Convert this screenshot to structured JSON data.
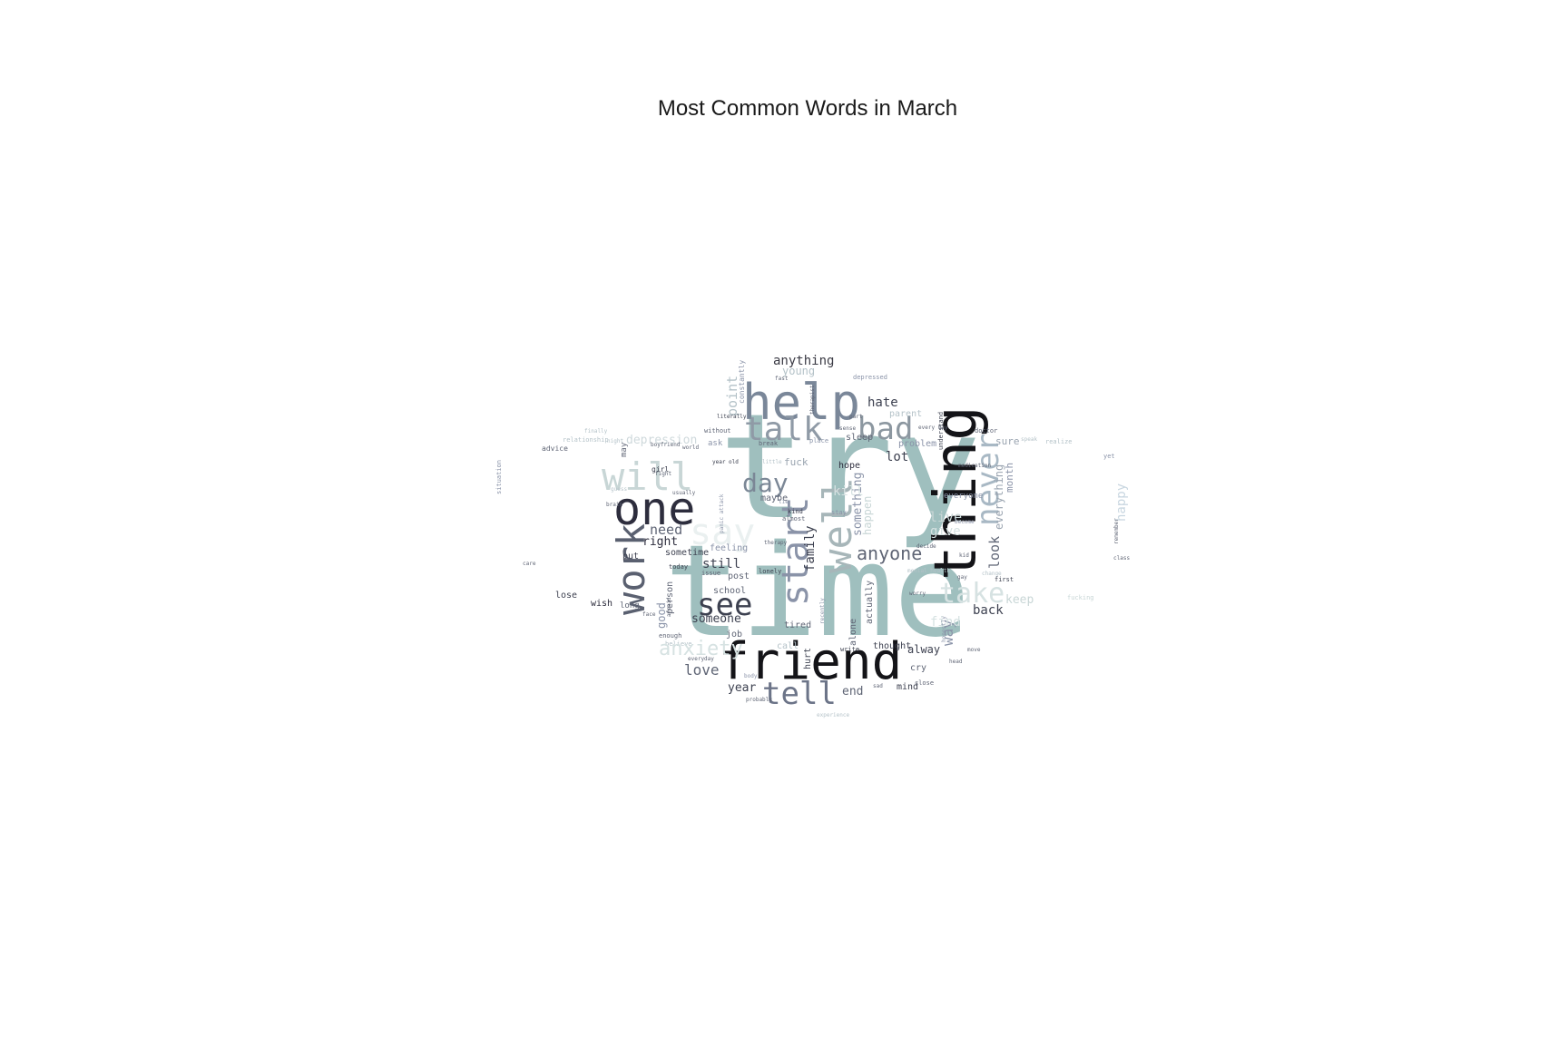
{
  "title": "Most Common Words in March",
  "words": [
    {
      "text": "try",
      "color": "#9fbfbe"
    },
    {
      "text": "time",
      "color": "#9fbfbe"
    },
    {
      "text": "friend",
      "color": "#141418"
    },
    {
      "text": "thing",
      "color": "#141418"
    },
    {
      "text": "help",
      "color": "#7a8799"
    },
    {
      "text": "one",
      "color": "#2d2d3d"
    },
    {
      "text": "talk",
      "color": "#8f9aa6"
    },
    {
      "text": "work",
      "color": "#5a6070"
    },
    {
      "text": "well",
      "color": "#a7b6b9"
    },
    {
      "text": "will",
      "color": "#c8d6d6"
    },
    {
      "text": "see",
      "color": "#3d4150"
    },
    {
      "text": "tell",
      "color": "#6c7488"
    },
    {
      "text": "start",
      "color": "#8a93a8"
    },
    {
      "text": "bad",
      "color": "#8c97a0"
    },
    {
      "text": "never",
      "color": "#a8b8c4"
    },
    {
      "text": "day",
      "color": "#7b8796"
    },
    {
      "text": "say",
      "color": "#eaf0f0"
    },
    {
      "text": "take",
      "color": "#d6e2e2"
    },
    {
      "text": "anyone",
      "color": "#5f6575"
    },
    {
      "text": "anything",
      "color": "#3a3a44"
    },
    {
      "text": "someone",
      "color": "#3d4150"
    },
    {
      "text": "still",
      "color": "#3d4150"
    },
    {
      "text": "love",
      "color": "#5f6575"
    },
    {
      "text": "year",
      "color": "#3d4150"
    },
    {
      "text": "back",
      "color": "#3d4150"
    },
    {
      "text": "need",
      "color": "#5f6575"
    },
    {
      "text": "right",
      "color": "#2d2d3d"
    },
    {
      "text": "hate",
      "color": "#3d4150"
    },
    {
      "text": "lot",
      "color": "#3d4150"
    },
    {
      "text": "end",
      "color": "#5f6575"
    },
    {
      "text": "family",
      "color": "#3d4150"
    },
    {
      "text": "something",
      "color": "#8a93a8"
    },
    {
      "text": "depression",
      "color": "#cfd9dc"
    },
    {
      "text": "keep",
      "color": "#c8d6d6"
    },
    {
      "text": "happy",
      "color": "#c8d6e0"
    },
    {
      "text": "way",
      "color": "#8a93a8"
    },
    {
      "text": "look",
      "color": "#5f6575"
    },
    {
      "text": "everything",
      "color": "#9aa4b0"
    },
    {
      "text": "month",
      "color": "#8a93a8"
    },
    {
      "text": "live",
      "color": "#c8d6d6"
    },
    {
      "text": "give",
      "color": "#d6e2e2"
    },
    {
      "text": "point",
      "color": "#b4c2c8"
    },
    {
      "text": "hope",
      "color": "#2d2d3d"
    },
    {
      "text": "fuck",
      "color": "#9aa4b0"
    },
    {
      "text": "maybe",
      "color": "#5f6575"
    },
    {
      "text": "kill",
      "color": "#d6e2e2"
    },
    {
      "text": "sleep",
      "color": "#5f6575"
    },
    {
      "text": "problem",
      "color": "#8a93a8"
    },
    {
      "text": "parent",
      "color": "#b4c2c8"
    },
    {
      "text": "feeling",
      "color": "#8a93a8"
    },
    {
      "text": "sometime",
      "color": "#3d4150"
    },
    {
      "text": "put",
      "color": "#3d4150"
    },
    {
      "text": "post",
      "color": "#5f6575"
    },
    {
      "text": "school",
      "color": "#5f6575"
    },
    {
      "text": "good",
      "color": "#8a93a8"
    },
    {
      "text": "person",
      "color": "#5f6575"
    },
    {
      "text": "job",
      "color": "#5f6575"
    },
    {
      "text": "tired",
      "color": "#5f6575"
    },
    {
      "text": "alway",
      "color": "#3d4150"
    },
    {
      "text": "thought",
      "color": "#3d4150"
    },
    {
      "text": "cry",
      "color": "#5f6575"
    },
    {
      "text": "mind",
      "color": "#3d4150"
    },
    {
      "text": "hurt",
      "color": "#3d4150"
    },
    {
      "text": "alone",
      "color": "#5f6575"
    },
    {
      "text": "actually",
      "color": "#5f6575"
    },
    {
      "text": "lose",
      "color": "#3d4150"
    },
    {
      "text": "wish",
      "color": "#2d2d3d"
    },
    {
      "text": "long",
      "color": "#5f6575"
    },
    {
      "text": "everyone",
      "color": "#8a93a8"
    },
    {
      "text": "sure",
      "color": "#9aa4b0"
    },
    {
      "text": "find",
      "color": "#d6e2e2"
    },
    {
      "text": "advice",
      "color": "#5f6575"
    },
    {
      "text": "relationship",
      "color": "#b4c2c8"
    },
    {
      "text": "without",
      "color": "#5f6575"
    },
    {
      "text": "depressed",
      "color": "#8a93a8"
    },
    {
      "text": "doctor",
      "color": "#5f6575"
    },
    {
      "text": "ask",
      "color": "#8a93a8"
    },
    {
      "text": "today",
      "color": "#3d4150"
    },
    {
      "text": "enough",
      "color": "#5f6575"
    },
    {
      "text": "first",
      "color": "#3d4150"
    },
    {
      "text": "understand",
      "color": "#3d4150"
    },
    {
      "text": "girl",
      "color": "#3d4150"
    },
    {
      "text": "constantly",
      "color": "#8a93a8"
    },
    {
      "text": "lonely",
      "color": "#3d4150"
    },
    {
      "text": "situation",
      "color": "#8a93a8"
    },
    {
      "text": "break",
      "color": "#5f6575"
    },
    {
      "text": "place",
      "color": "#8a93a8"
    },
    {
      "text": "stay",
      "color": "#8a93a8"
    },
    {
      "text": "kind",
      "color": "#3d4150"
    },
    {
      "text": "almost",
      "color": "#5f6575"
    },
    {
      "text": "issue",
      "color": "#5f6575"
    },
    {
      "text": "close",
      "color": "#5f6575"
    },
    {
      "text": "yet",
      "color": "#8a93a8"
    },
    {
      "text": "head",
      "color": "#5f6575"
    },
    {
      "text": "body",
      "color": "#8a93a8"
    },
    {
      "text": "probably",
      "color": "#5f6575"
    },
    {
      "text": "world",
      "color": "#5f6575"
    },
    {
      "text": "may",
      "color": "#5f6575"
    },
    {
      "text": "literally",
      "color": "#3d4150"
    },
    {
      "text": "happen",
      "color": "#c8d6d6"
    },
    {
      "text": "mental health",
      "color": "#b4c2c8"
    },
    {
      "text": "panic attack",
      "color": "#8a93a8"
    },
    {
      "text": "believe",
      "color": "#b4c2c8"
    },
    {
      "text": "experience",
      "color": "#b4c2c8"
    },
    {
      "text": "write",
      "color": "#3d4150"
    },
    {
      "text": "call",
      "color": "#b4c2c8"
    },
    {
      "text": "recently",
      "color": "#8a93a8"
    },
    {
      "text": "honestly",
      "color": "#8a93a8"
    },
    {
      "text": "realize",
      "color": "#b4c2c8"
    },
    {
      "text": "night",
      "color": "#b4c2c8"
    },
    {
      "text": "medication",
      "color": "#5f6575"
    },
    {
      "text": "decide",
      "color": "#5f6575"
    },
    {
      "text": "kid",
      "color": "#5f6575"
    },
    {
      "text": "move",
      "color": "#5f6575"
    },
    {
      "text": "little",
      "color": "#b4c2c8"
    },
    {
      "text": "therapy",
      "color": "#5f6575"
    },
    {
      "text": "fucking",
      "color": "#c8d6d6"
    },
    {
      "text": "change",
      "color": "#b4c2c8"
    },
    {
      "text": "everyday",
      "color": "#5f6575"
    },
    {
      "text": "afraid",
      "color": "#5f6575"
    },
    {
      "text": "sad",
      "color": "#5f6575"
    },
    {
      "text": "brain",
      "color": "#5f6575"
    },
    {
      "text": "year old",
      "color": "#3d4150"
    },
    {
      "text": "remember",
      "color": "#5f6575"
    },
    {
      "text": "class",
      "color": "#5f6575"
    },
    {
      "text": "care",
      "color": "#5f6575"
    },
    {
      "text": "guess",
      "color": "#b4c2c8"
    },
    {
      "text": "usually",
      "color": "#5f6575"
    },
    {
      "text": "boyfriend",
      "color": "#5f6575"
    },
    {
      "text": "worry",
      "color": "#5f6575"
    },
    {
      "text": "fight",
      "color": "#5f6575"
    },
    {
      "text": "become",
      "color": "#8a93a8"
    },
    {
      "text": "sense",
      "color": "#5f6575"
    },
    {
      "text": "part",
      "color": "#5f6575"
    },
    {
      "text": "every day",
      "color": "#5f6575"
    },
    {
      "text": "therapist",
      "color": "#5f6575"
    },
    {
      "text": "finally",
      "color": "#b4c2c8"
    },
    {
      "text": "lie",
      "color": "#8a93a8"
    },
    {
      "text": "speak",
      "color": "#b4c2c8"
    },
    {
      "text": "face",
      "color": "#5f6575"
    },
    {
      "text": "fast",
      "color": "#5f6575"
    },
    {
      "text": "gay",
      "color": "#5f6575"
    },
    {
      "text": "anxiety",
      "color": "#d6e2e2"
    },
    {
      "text": "young",
      "color": "#b4c2c8"
    },
    {
      "text": "forward",
      "color": "#d6e2e2"
    }
  ]
}
